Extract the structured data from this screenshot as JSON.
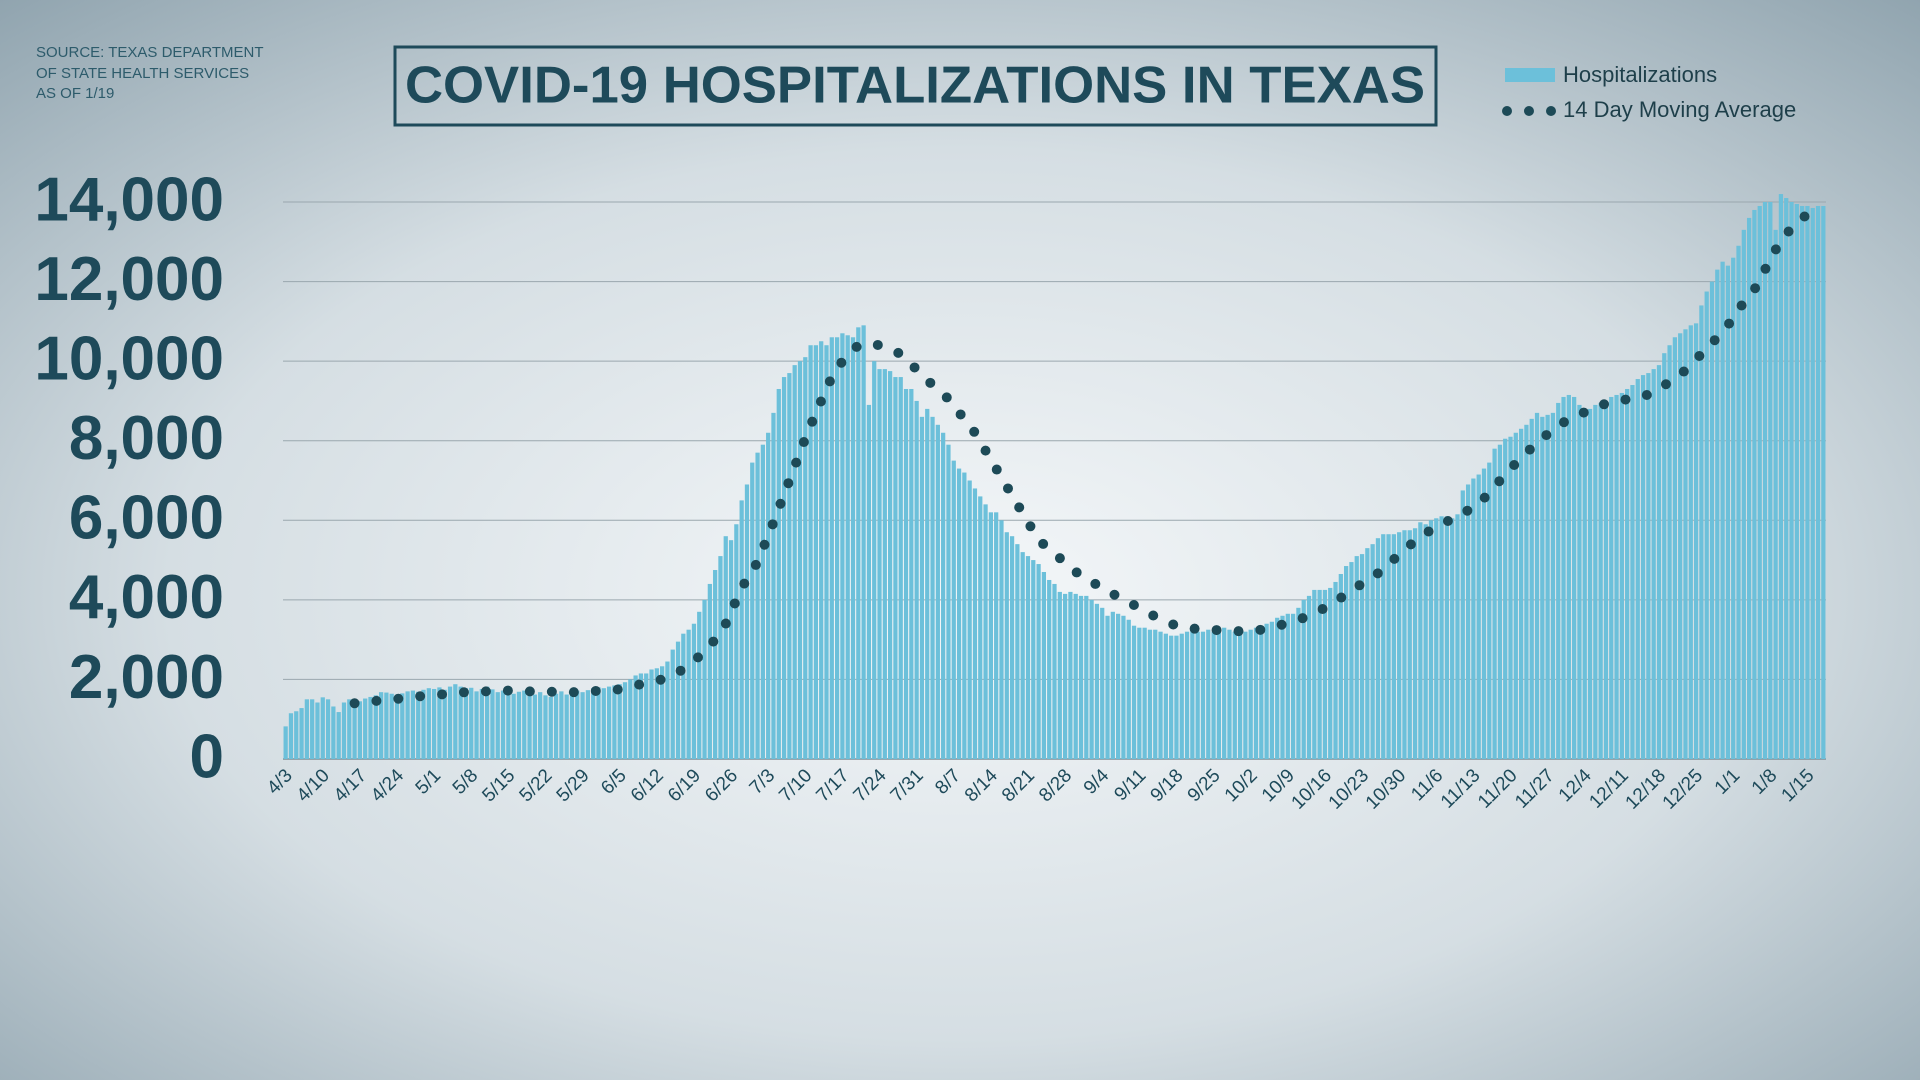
{
  "chart_data": {
    "type": "bar",
    "title": "COVID-19 HOSPITALIZATIONS IN TEXAS",
    "source": [
      "SOURCE: TEXAS DEPARTMENT",
      "OF STATE HEALTH SERVICES",
      "AS OF 1/19"
    ],
    "categories": [
      "4/3",
      null,
      null,
      null,
      null,
      null,
      null,
      "4/10",
      null,
      null,
      null,
      null,
      null,
      null,
      "4/17",
      null,
      null,
      null,
      null,
      null,
      null,
      "4/24",
      null,
      null,
      null,
      null,
      null,
      null,
      "5/1",
      null,
      null,
      null,
      null,
      null,
      null,
      "5/8",
      null,
      null,
      null,
      null,
      null,
      null,
      "5/15",
      null,
      null,
      null,
      null,
      null,
      null,
      "5/22",
      null,
      null,
      null,
      null,
      null,
      null,
      "5/29",
      null,
      null,
      null,
      null,
      null,
      null,
      "6/5",
      null,
      null,
      null,
      null,
      null,
      null,
      "6/12",
      null,
      null,
      null,
      null,
      null,
      null,
      "6/19",
      null,
      null,
      null,
      null,
      null,
      null,
      "6/26",
      null,
      null,
      null,
      null,
      null,
      null,
      "7/3",
      null,
      null,
      null,
      null,
      null,
      null,
      "7/10",
      null,
      null,
      null,
      null,
      null,
      null,
      "7/17",
      null,
      null,
      null,
      null,
      null,
      null,
      "7/24",
      null,
      null,
      null,
      null,
      null,
      null,
      "7/31",
      null,
      null,
      null,
      null,
      null,
      null,
      "8/7",
      null,
      null,
      null,
      null,
      null,
      null,
      "8/14",
      null,
      null,
      null,
      null,
      null,
      null,
      "8/21",
      null,
      null,
      null,
      null,
      null,
      null,
      "8/28",
      null,
      null,
      null,
      null,
      null,
      null,
      "9/4",
      null,
      null,
      null,
      null,
      null,
      null,
      "9/11",
      null,
      null,
      null,
      null,
      null,
      null,
      "9/18",
      null,
      null,
      null,
      null,
      null,
      null,
      "9/25",
      null,
      null,
      null,
      null,
      null,
      null,
      "10/2",
      null,
      null,
      null,
      null,
      null,
      null,
      "10/9",
      null,
      null,
      null,
      null,
      null,
      null,
      "10/16",
      null,
      null,
      null,
      null,
      null,
      null,
      "10/23",
      null,
      null,
      null,
      null,
      null,
      null,
      "10/30",
      null,
      null,
      null,
      null,
      null,
      null,
      "11/6",
      null,
      null,
      null,
      null,
      null,
      null,
      "11/13",
      null,
      null,
      null,
      null,
      null,
      null,
      "11/20",
      null,
      null,
      null,
      null,
      null,
      null,
      "11/27",
      null,
      null,
      null,
      null,
      null,
      null,
      "12/4",
      null,
      null,
      null,
      null,
      null,
      null,
      "12/11",
      null,
      null,
      null,
      null,
      null,
      null,
      "12/18",
      null,
      null,
      null,
      null,
      null,
      null,
      "12/25",
      null,
      null,
      null,
      null,
      null,
      null,
      "1/1",
      null,
      null,
      null,
      null,
      null,
      null,
      "1/8",
      null,
      null,
      null,
      null,
      null,
      null,
      "1/15",
      null,
      null,
      null
    ],
    "series": [
      {
        "name": "Hospitalizations",
        "type": "bar",
        "color": "#6cc0da",
        "values": [
          820,
          1150,
          1200,
          1280,
          1500,
          1500,
          1420,
          1550,
          1500,
          1320,
          1180,
          1420,
          1500,
          1480,
          1450,
          1520,
          1560,
          1600,
          1680,
          1670,
          1640,
          1620,
          1650,
          1700,
          1720,
          1690,
          1740,
          1780,
          1760,
          1800,
          1740,
          1820,
          1880,
          1820,
          1780,
          1790,
          1700,
          1760,
          1820,
          1750,
          1680,
          1720,
          1700,
          1640,
          1690,
          1720,
          1650,
          1620,
          1680,
          1600,
          1560,
          1640,
          1700,
          1620,
          1640,
          1720,
          1680,
          1730,
          1780,
          1800,
          1780,
          1820,
          1850,
          1880,
          1930,
          2000,
          2100,
          2150,
          2150,
          2250,
          2280,
          2330,
          2450,
          2750,
          2950,
          3150,
          3250,
          3400,
          3700,
          4000,
          4400,
          4750,
          5100,
          5600,
          5500,
          5900,
          6500,
          6900,
          7450,
          7700,
          7900,
          8200,
          8700,
          9300,
          9600,
          9700,
          9900,
          10000,
          10100,
          10400,
          10400,
          10500,
          10400,
          10600,
          10600,
          10700,
          10650,
          10600,
          10850,
          10900,
          8900,
          10000,
          9800,
          9800,
          9750,
          9600,
          9600,
          9300,
          9300,
          9000,
          8600,
          8800,
          8600,
          8400,
          8200,
          7900,
          7500,
          7300,
          7200,
          7000,
          6800,
          6600,
          6400,
          6200,
          6200,
          6000,
          5700,
          5600,
          5400,
          5200,
          5100,
          5000,
          4900,
          4700,
          4500,
          4400,
          4200,
          4150,
          4200,
          4150,
          4100,
          4100,
          4000,
          3900,
          3800,
          3600,
          3700,
          3650,
          3600,
          3500,
          3350,
          3300,
          3300,
          3250,
          3250,
          3200,
          3150,
          3100,
          3100,
          3150,
          3200,
          3250,
          3200,
          3200,
          3250,
          3200,
          3250,
          3300,
          3250,
          3200,
          3150,
          3200,
          3250,
          3300,
          3350,
          3400,
          3450,
          3550,
          3600,
          3650,
          3650,
          3800,
          4000,
          4100,
          4250,
          4250,
          4250,
          4300,
          4450,
          4650,
          4850,
          4950,
          5100,
          5150,
          5300,
          5400,
          5550,
          5650,
          5650,
          5650,
          5700,
          5750,
          5750,
          5800,
          5950,
          5900,
          6000,
          6050,
          6100,
          6100,
          6050,
          6150,
          6750,
          6900,
          7050,
          7150,
          7300,
          7450,
          7800,
          7900,
          8050,
          8100,
          8200,
          8300,
          8400,
          8550,
          8700,
          8600,
          8650,
          8700,
          8950,
          9100,
          9150,
          9100,
          8900,
          8700,
          8800,
          8900,
          8950,
          9000,
          9100,
          9150,
          9200,
          9300,
          9400,
          9550,
          9650,
          9700,
          9800,
          9900,
          10200,
          10400,
          10600,
          10700,
          10800,
          10900,
          10950,
          11400,
          11750,
          12000,
          12300,
          12500,
          12400,
          12600,
          12900,
          13300,
          13600,
          13800,
          13900,
          14000,
          14000,
          13300,
          14200,
          14100,
          14000,
          13950,
          13900,
          13900,
          13850,
          13900,
          13900
        ]
      },
      {
        "name": "14 Day Moving Average",
        "type": "line",
        "style": "dotted",
        "color": "#1d4a57",
        "values": [
          null,
          null,
          null,
          null,
          null,
          null,
          null,
          null,
          null,
          null,
          null,
          null,
          null,
          1400,
          1410,
          1430,
          1440,
          1460,
          1470,
          1490,
          1500,
          1510,
          1530,
          1540,
          1560,
          1570,
          1590,
          1600,
          1610,
          1620,
          1630,
          1640,
          1660,
          1670,
          1680,
          1690,
          1690,
          1700,
          1700,
          1710,
          1710,
          1720,
          1720,
          1710,
          1710,
          1710,
          1700,
          1700,
          1700,
          1700,
          1690,
          1690,
          1690,
          1680,
          1680,
          1680,
          1690,
          1700,
          1710,
          1710,
          1720,
          1730,
          1740,
          1750,
          1780,
          1820,
          1850,
          1880,
          1910,
          1940,
          1970,
          2000,
          2060,
          2130,
          2190,
          2250,
          2360,
          2470,
          2580,
          2720,
          2860,
          3000,
          3200,
          3400,
          3700,
          4000,
          4300,
          4520,
          4730,
          4950,
          5280,
          5620,
          5950,
          6300,
          6650,
          7000,
          7350,
          7710,
          8060,
          8380,
          8700,
          9000,
          9300,
          9600,
          9800,
          10000,
          10130,
          10270,
          10400,
          10420,
          10430,
          10420,
          10400,
          10350,
          10290,
          10240,
          10180,
          10050,
          9920,
          9790,
          9660,
          9530,
          9400,
          9280,
          9170,
          9050,
          8880,
          8710,
          8540,
          8370,
          8200,
          7980,
          7750,
          7530,
          7300,
          7080,
          6850,
          6630,
          6400,
          6180,
          5950,
          5730,
          5500,
          5390,
          5280,
          5160,
          5050,
          4940,
          4830,
          4710,
          4600,
          4530,
          4450,
          4380,
          4300,
          4230,
          4150,
          4080,
          4000,
          3930,
          3870,
          3800,
          3730,
          3650,
          3580,
          3500,
          3450,
          3400,
          3350,
          3300,
          3290,
          3280,
          3270,
          3260,
          3250,
          3240,
          3240,
          3230,
          3230,
          3220,
          3210,
          3210,
          3200,
          3230,
          3250,
          3280,
          3300,
          3340,
          3380,
          3410,
          3450,
          3500,
          3550,
          3600,
          3650,
          3730,
          3800,
          3880,
          3950,
          4050,
          4150,
          4250,
          4330,
          4400,
          4480,
          4550,
          4670,
          4780,
          4900,
          5020,
          5130,
          5250,
          5370,
          5480,
          5600,
          5680,
          5750,
          5830,
          5900,
          5970,
          6030,
          6100,
          6180,
          6250,
          6330,
          6400,
          6550,
          6700,
          6850,
          7000,
          7150,
          7300,
          7430,
          7570,
          7700,
          7820,
          7930,
          8050,
          8170,
          8280,
          8400,
          8460,
          8530,
          8590,
          8650,
          8720,
          8780,
          8850,
          8890,
          8930,
          8960,
          9000,
          9020,
          9040,
          9060,
          9080,
          9100,
          9170,
          9230,
          9300,
          9390,
          9480,
          9560,
          9650,
          9780,
          9920,
          10050,
          10180,
          10320,
          10450,
          10600,
          10750,
          10900,
          11100,
          11300,
          11470,
          11630,
          11800,
          12050,
          12300,
          12550,
          12800,
          13000,
          13200,
          13330,
          13470,
          13600,
          13680,
          13770,
          13850,
          13900
        ]
      }
    ],
    "ylim": [
      0,
      14000
    ],
    "yticks": [
      0,
      {
        "value": 2000,
        "label": "2,000"
      },
      {
        "value": 4000,
        "label": "4,000"
      },
      {
        "value": 6000,
        "label": "6,000"
      },
      {
        "value": 8000,
        "label": "8,000"
      },
      {
        "value": 10000,
        "label": "10,000"
      },
      {
        "value": 12000,
        "label": "12,000"
      },
      {
        "value": 14000,
        "label": "14,000"
      }
    ],
    "grid": true,
    "legend": "top-right"
  }
}
